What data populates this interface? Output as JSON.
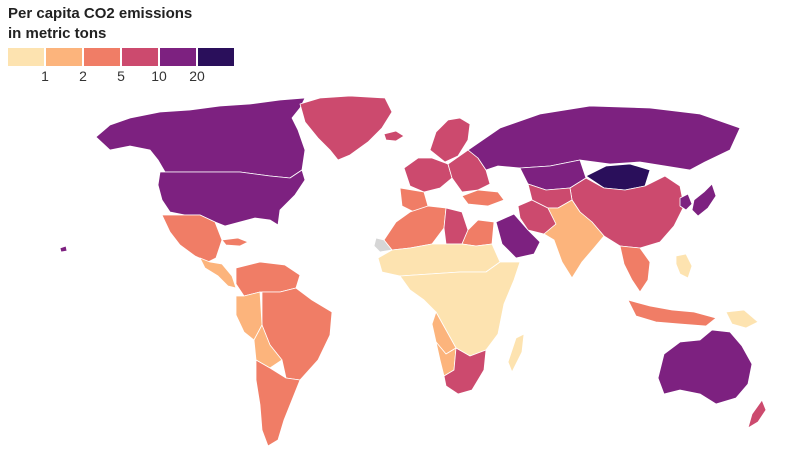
{
  "legend": {
    "title_line1": "Per capita CO2 emissions",
    "title_line2": "in metric tons",
    "ticks": [
      "1",
      "2",
      "5",
      "10",
      "20"
    ],
    "colors": [
      "#fde3b0",
      "#fcb47c",
      "#f07d66",
      "#cc4a6e",
      "#7d2180",
      "#2a0f5b"
    ]
  },
  "map": {
    "ocean_color": "#ffffff",
    "border_color": "#ffffff",
    "no_data_color": "#d6d6d6",
    "regions": [
      {
        "name": "Canada/Alaska",
        "bin": 4
      },
      {
        "name": "United States",
        "bin": 4
      },
      {
        "name": "Greenland",
        "bin": 3
      },
      {
        "name": "Mexico",
        "bin": 2
      },
      {
        "name": "Central America",
        "bin": 1
      },
      {
        "name": "Cuba",
        "bin": 2
      },
      {
        "name": "Venezuela/Colombia",
        "bin": 2
      },
      {
        "name": "Brazil",
        "bin": 2
      },
      {
        "name": "Peru",
        "bin": 1
      },
      {
        "name": "Bolivia",
        "bin": 1
      },
      {
        "name": "Chile/Argentina",
        "bin": 2
      },
      {
        "name": "Iceland",
        "bin": 3
      },
      {
        "name": "Scandinavia",
        "bin": 3
      },
      {
        "name": "Western Europe",
        "bin": 3
      },
      {
        "name": "Spain/Portugal",
        "bin": 2
      },
      {
        "name": "Eastern Europe",
        "bin": 3
      },
      {
        "name": "Russia",
        "bin": 4
      },
      {
        "name": "Kazakhstan",
        "bin": 4
      },
      {
        "name": "Mongolia",
        "bin": 5
      },
      {
        "name": "China",
        "bin": 3
      },
      {
        "name": "Japan",
        "bin": 4
      },
      {
        "name": "Korea",
        "bin": 4
      },
      {
        "name": "Turkey",
        "bin": 2
      },
      {
        "name": "Iran",
        "bin": 3
      },
      {
        "name": "Saudi Arabia",
        "bin": 4
      },
      {
        "name": "Central Asia",
        "bin": 3
      },
      {
        "name": "South Asia",
        "bin": 1
      },
      {
        "name": "Southeast Asia",
        "bin": 2
      },
      {
        "name": "Indonesia",
        "bin": 2
      },
      {
        "name": "Philippines",
        "bin": 0
      },
      {
        "name": "Papua New Guinea",
        "bin": 0
      },
      {
        "name": "North Africa",
        "bin": 2
      },
      {
        "name": "Libya",
        "bin": 3
      },
      {
        "name": "Egypt",
        "bin": 2
      },
      {
        "name": "Sahel",
        "bin": 0
      },
      {
        "name": "Western Sahara",
        "bin": -1
      },
      {
        "name": "Sub-Saharan Africa",
        "bin": 0
      },
      {
        "name": "Angola",
        "bin": 1
      },
      {
        "name": "Namibia",
        "bin": 1
      },
      {
        "name": "South Africa",
        "bin": 3
      },
      {
        "name": "Madagascar",
        "bin": 0
      },
      {
        "name": "Australia",
        "bin": 4
      },
      {
        "name": "New Zealand",
        "bin": 3
      },
      {
        "name": "Hawaii",
        "bin": 4
      }
    ]
  }
}
